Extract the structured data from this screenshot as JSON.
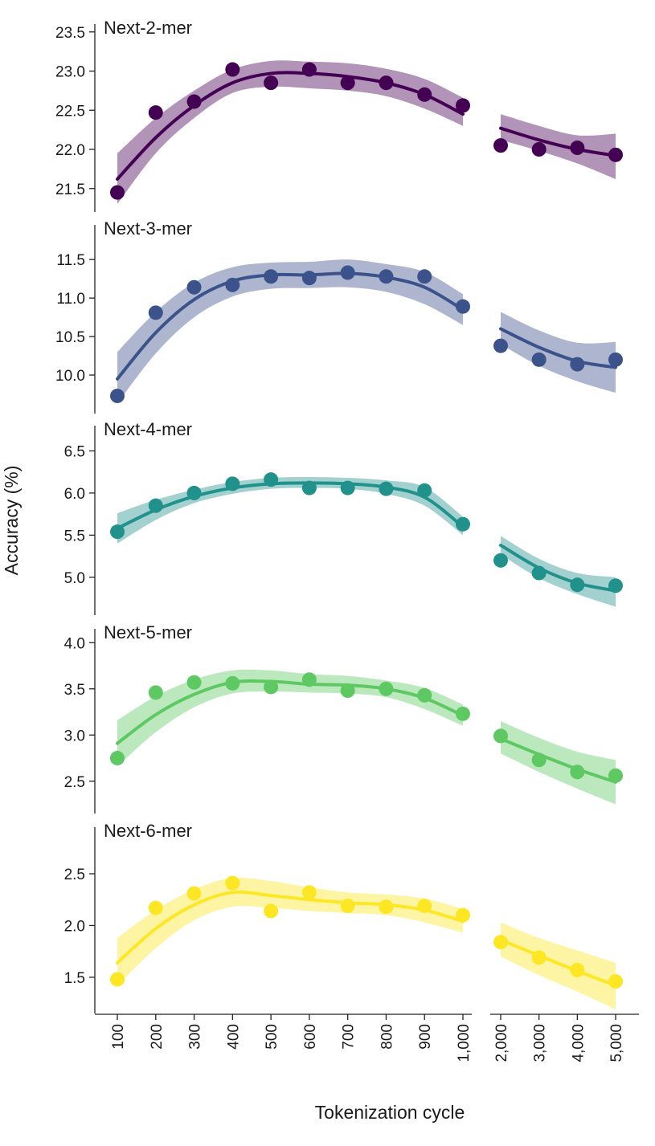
{
  "chart_data": {
    "type": "scatter",
    "xlabel": "Tokenization cycle",
    "ylabel": "Accuracy (%)",
    "x_left_ticks": [
      100,
      200,
      300,
      400,
      500,
      600,
      700,
      800,
      900,
      1000
    ],
    "x_left_tick_labels": [
      "100",
      "200",
      "300",
      "400",
      "500",
      "600",
      "700",
      "800",
      "900",
      "1,000"
    ],
    "x_right_ticks": [
      2000,
      3000,
      4000,
      5000
    ],
    "x_right_tick_labels": [
      "2,000",
      "3,000",
      "4,000",
      "5,000"
    ],
    "grid": false,
    "panels": [
      {
        "title": "Next-2-mer",
        "color": "#440154",
        "ylim": [
          21.2,
          23.6
        ],
        "yticks": [
          21.5,
          22.0,
          22.5,
          23.0,
          23.5
        ],
        "ytick_labels": [
          "21.5",
          "22.0",
          "22.5",
          "23.0",
          "23.5"
        ],
        "left": {
          "x": [
            100,
            200,
            300,
            400,
            500,
            600,
            700,
            800,
            900,
            1000
          ],
          "y": [
            21.45,
            22.47,
            22.61,
            23.02,
            22.85,
            23.02,
            22.85,
            22.85,
            22.7,
            22.56
          ],
          "fit": [
            21.62,
            22.15,
            22.56,
            22.85,
            22.97,
            22.97,
            22.93,
            22.85,
            22.7,
            22.45
          ],
          "band_low": [
            21.3,
            21.95,
            22.4,
            22.72,
            22.8,
            22.78,
            22.75,
            22.68,
            22.52,
            22.3
          ],
          "band_high": [
            21.95,
            22.4,
            22.75,
            23.02,
            23.13,
            23.12,
            23.1,
            23.03,
            22.9,
            22.66
          ]
        },
        "right": {
          "x": [
            2000,
            3000,
            4000,
            5000
          ],
          "y": [
            22.05,
            22.0,
            22.02,
            21.93
          ],
          "fit": [
            22.27,
            22.12,
            22.0,
            21.92
          ],
          "band_low": [
            22.12,
            21.98,
            21.82,
            21.62
          ],
          "band_high": [
            22.45,
            22.3,
            22.18,
            22.2
          ]
        }
      },
      {
        "title": "Next-3-mer",
        "color": "#3b528b",
        "ylim": [
          9.5,
          11.95
        ],
        "yticks": [
          10.0,
          10.5,
          11.0,
          11.5
        ],
        "ytick_labels": [
          "10.0",
          "10.5",
          "11.0",
          "11.5"
        ],
        "left": {
          "x": [
            100,
            200,
            300,
            400,
            500,
            600,
            700,
            800,
            900,
            1000
          ],
          "y": [
            9.73,
            10.81,
            11.14,
            11.17,
            11.28,
            11.26,
            11.33,
            11.28,
            11.28,
            10.89
          ],
          "fit": [
            9.95,
            10.55,
            10.98,
            11.22,
            11.3,
            11.3,
            11.32,
            11.27,
            11.14,
            10.85
          ],
          "band_low": [
            9.63,
            10.28,
            10.75,
            11.02,
            11.12,
            11.13,
            11.14,
            11.08,
            10.92,
            10.65
          ],
          "band_high": [
            10.3,
            10.82,
            11.2,
            11.4,
            11.46,
            11.47,
            11.5,
            11.44,
            11.34,
            11.05
          ]
        },
        "right": {
          "x": [
            2000,
            3000,
            4000,
            5000
          ],
          "y": [
            10.38,
            10.2,
            10.14,
            10.2
          ],
          "fit": [
            10.6,
            10.36,
            10.18,
            10.1
          ],
          "band_low": [
            10.4,
            10.12,
            9.92,
            9.77
          ],
          "band_high": [
            10.82,
            10.58,
            10.42,
            10.43
          ]
        }
      },
      {
        "title": "Next-4-mer",
        "color": "#21918c",
        "ylim": [
          4.55,
          6.8
        ],
        "yticks": [
          5.0,
          5.5,
          6.0,
          6.5
        ],
        "ytick_labels": [
          "5.0",
          "5.5",
          "6.0",
          "6.5"
        ],
        "left": {
          "x": [
            100,
            200,
            300,
            400,
            500,
            600,
            700,
            800,
            900,
            1000
          ],
          "y": [
            5.54,
            5.85,
            6.0,
            6.11,
            6.16,
            6.06,
            6.06,
            6.05,
            6.03,
            5.63
          ],
          "fit": [
            5.58,
            5.8,
            5.96,
            6.06,
            6.11,
            6.12,
            6.11,
            6.07,
            5.95,
            5.6
          ],
          "band_low": [
            5.4,
            5.68,
            5.88,
            5.99,
            6.05,
            6.06,
            6.05,
            5.99,
            5.85,
            5.5
          ],
          "band_high": [
            5.76,
            5.92,
            6.04,
            6.13,
            6.18,
            6.19,
            6.18,
            6.15,
            6.07,
            5.72
          ]
        },
        "right": {
          "x": [
            2000,
            3000,
            4000,
            5000
          ],
          "y": [
            5.2,
            5.05,
            4.91,
            4.9
          ],
          "fit": [
            5.38,
            5.11,
            4.93,
            4.84
          ],
          "band_low": [
            5.27,
            4.99,
            4.8,
            4.65
          ],
          "band_high": [
            5.49,
            5.22,
            5.05,
            5.0
          ]
        }
      },
      {
        "title": "Next-5-mer",
        "color": "#5ec962",
        "ylim": [
          2.15,
          4.15
        ],
        "yticks": [
          2.5,
          3.0,
          3.5,
          4.0
        ],
        "ytick_labels": [
          "2.5",
          "3.0",
          "3.5",
          "4.0"
        ],
        "left": {
          "x": [
            100,
            200,
            300,
            400,
            500,
            600,
            700,
            800,
            900,
            1000
          ],
          "y": [
            2.75,
            3.46,
            3.57,
            3.56,
            3.52,
            3.6,
            3.48,
            3.5,
            3.43,
            3.23
          ],
          "fit": [
            2.91,
            3.22,
            3.44,
            3.57,
            3.58,
            3.55,
            3.54,
            3.5,
            3.4,
            3.21
          ],
          "band_low": [
            2.66,
            3.03,
            3.3,
            3.45,
            3.47,
            3.46,
            3.45,
            3.41,
            3.28,
            3.1
          ],
          "band_high": [
            3.16,
            3.42,
            3.6,
            3.7,
            3.7,
            3.66,
            3.64,
            3.59,
            3.51,
            3.33
          ]
        },
        "right": {
          "x": [
            2000,
            3000,
            4000,
            5000
          ],
          "y": [
            2.99,
            2.73,
            2.6,
            2.56
          ],
          "fit": [
            2.96,
            2.79,
            2.63,
            2.49
          ],
          "band_low": [
            2.8,
            2.6,
            2.42,
            2.25
          ],
          "band_high": [
            3.15,
            2.97,
            2.82,
            2.73
          ]
        }
      },
      {
        "title": "Next-6-mer",
        "color": "#fde725",
        "ylim": [
          1.15,
          2.95
        ],
        "yticks": [
          1.5,
          2.0,
          2.5
        ],
        "ytick_labels": [
          "1.5",
          "2.0",
          "2.5"
        ],
        "left": {
          "x": [
            100,
            200,
            300,
            400,
            500,
            600,
            700,
            800,
            900,
            1000
          ],
          "y": [
            1.48,
            2.17,
            2.31,
            2.41,
            2.14,
            2.32,
            2.19,
            2.18,
            2.19,
            2.1
          ],
          "fit": [
            1.64,
            1.97,
            2.2,
            2.32,
            2.29,
            2.25,
            2.22,
            2.2,
            2.15,
            2.04
          ],
          "band_low": [
            1.42,
            1.78,
            2.05,
            2.18,
            2.17,
            2.14,
            2.12,
            2.1,
            2.03,
            1.93
          ],
          "band_high": [
            1.88,
            2.15,
            2.35,
            2.46,
            2.43,
            2.37,
            2.32,
            2.3,
            2.26,
            2.16
          ]
        },
        "right": {
          "x": [
            2000,
            3000,
            4000,
            5000
          ],
          "y": [
            1.84,
            1.69,
            1.57,
            1.46
          ],
          "fit": [
            1.86,
            1.71,
            1.56,
            1.42
          ],
          "band_low": [
            1.7,
            1.52,
            1.36,
            1.19
          ],
          "band_high": [
            2.03,
            1.88,
            1.76,
            1.64
          ]
        }
      }
    ]
  }
}
